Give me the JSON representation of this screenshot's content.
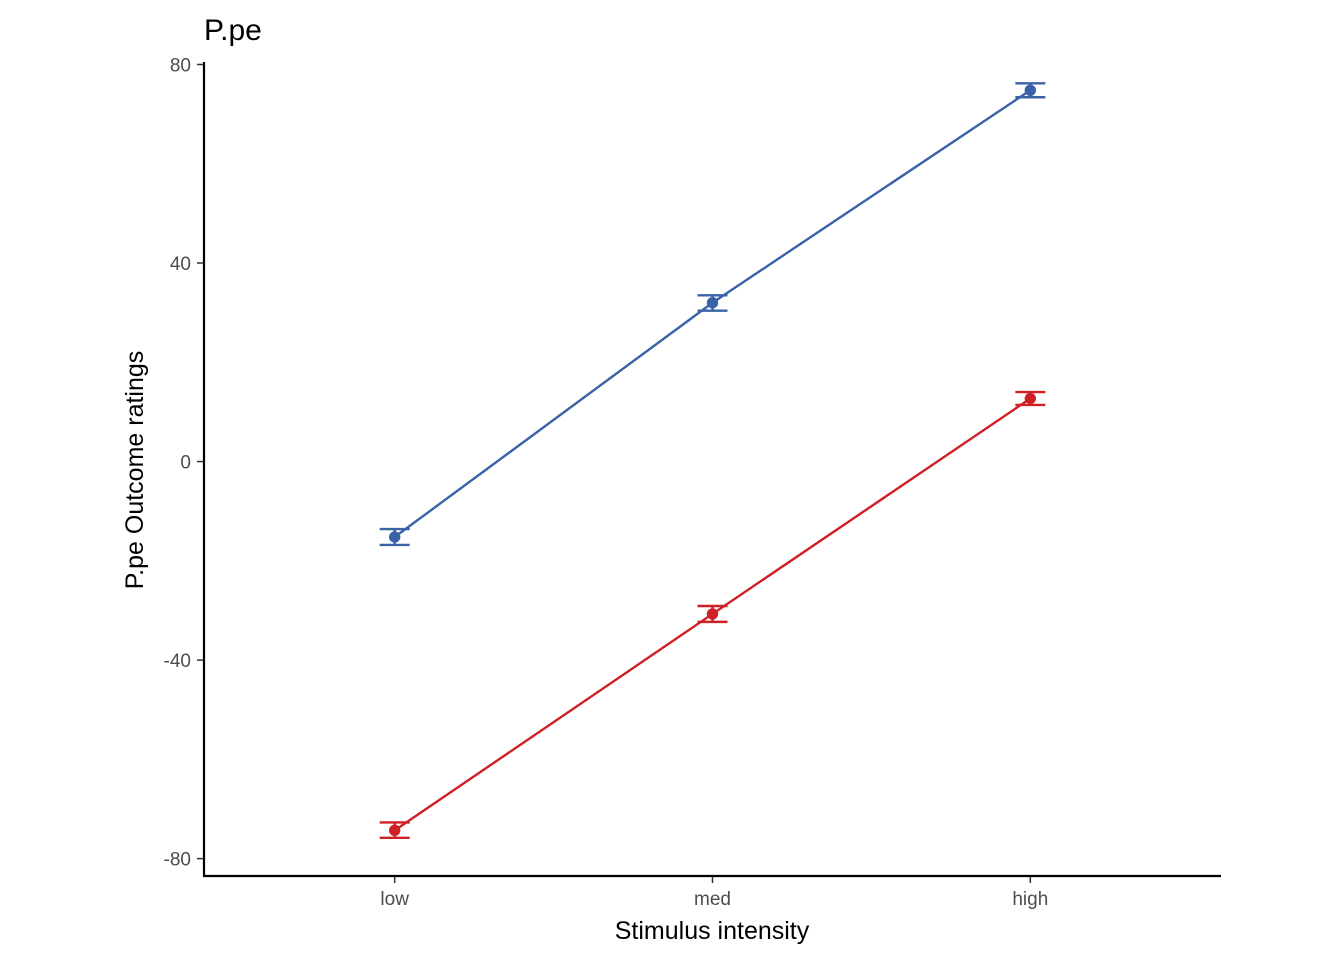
{
  "chart_data": {
    "type": "line",
    "title": "P.pe",
    "xlabel": "Stimulus intensity",
    "ylabel": "P.pe Outcome ratings",
    "categories": [
      "low",
      "med",
      "high"
    ],
    "ylim": [
      -83.5,
      80.5
    ],
    "yticks": [
      -80,
      -40,
      0,
      40,
      80
    ],
    "ytick_labels": [
      "-80",
      "-40",
      "0",
      "40",
      "80"
    ],
    "grid": false,
    "legend": "none",
    "series": [
      {
        "color": "#3a62a7",
        "values": [
          -15.2,
          32.0,
          74.8
        ],
        "error_lower": [
          -16.8,
          30.4,
          73.4
        ],
        "error_upper": [
          -13.6,
          33.5,
          76.2
        ]
      },
      {
        "color": "#cf2026",
        "values": [
          -74.3,
          -30.7,
          12.7
        ],
        "error_lower": [
          -75.8,
          -32.3,
          11.4
        ],
        "error_upper": [
          -72.7,
          -29.1,
          14.0
        ]
      }
    ]
  }
}
